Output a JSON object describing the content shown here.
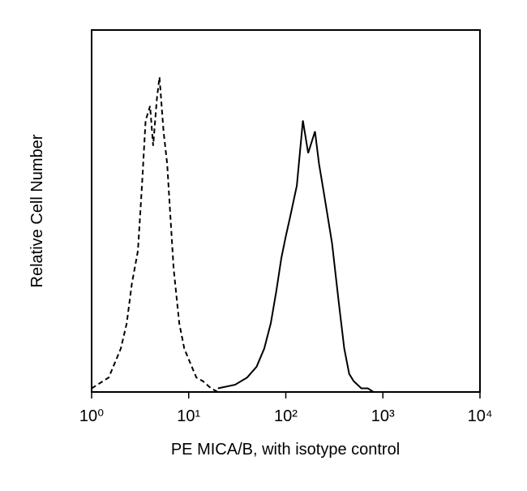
{
  "chart_data": {
    "type": "line",
    "xlabel": "PE MICA/B, with isotype control",
    "ylabel": "Relative Cell Number",
    "xscale": "log",
    "xlim": [
      1,
      10000
    ],
    "xticks": [
      {
        "value": 1,
        "label": "10⁰"
      },
      {
        "value": 10,
        "label": "10¹"
      },
      {
        "value": 100,
        "label": "10²"
      },
      {
        "value": 1000,
        "label": "10³"
      },
      {
        "value": 10000,
        "label": "10⁴"
      }
    ],
    "ylim": [
      0,
      100
    ],
    "series": [
      {
        "color": "#000000",
        "dashed": true,
        "x": [
          1,
          1.5,
          2,
          2.3,
          2.6,
          3,
          3.3,
          3.6,
          4,
          4.3,
          4.7,
          5,
          5.5,
          6,
          6.5,
          7,
          8,
          9,
          10,
          12,
          14,
          17,
          20
        ],
        "values": [
          1,
          4,
          12,
          19,
          30,
          39,
          57,
          75,
          79,
          68,
          81,
          87,
          72,
          63,
          48,
          34,
          19,
          12,
          9,
          4,
          3,
          1,
          0
        ]
      },
      {
        "color": "#000000",
        "dashed": false,
        "x": [
          20,
          30,
          40,
          50,
          60,
          70,
          80,
          90,
          100,
          110,
          130,
          150,
          170,
          200,
          220,
          250,
          300,
          350,
          400,
          450,
          500,
          600,
          700,
          800
        ],
        "values": [
          1,
          2,
          4,
          7,
          12,
          19,
          28,
          37,
          43,
          48,
          57,
          75,
          66,
          72,
          63,
          54,
          41,
          25,
          12,
          5,
          3,
          1,
          1,
          0
        ]
      }
    ]
  }
}
